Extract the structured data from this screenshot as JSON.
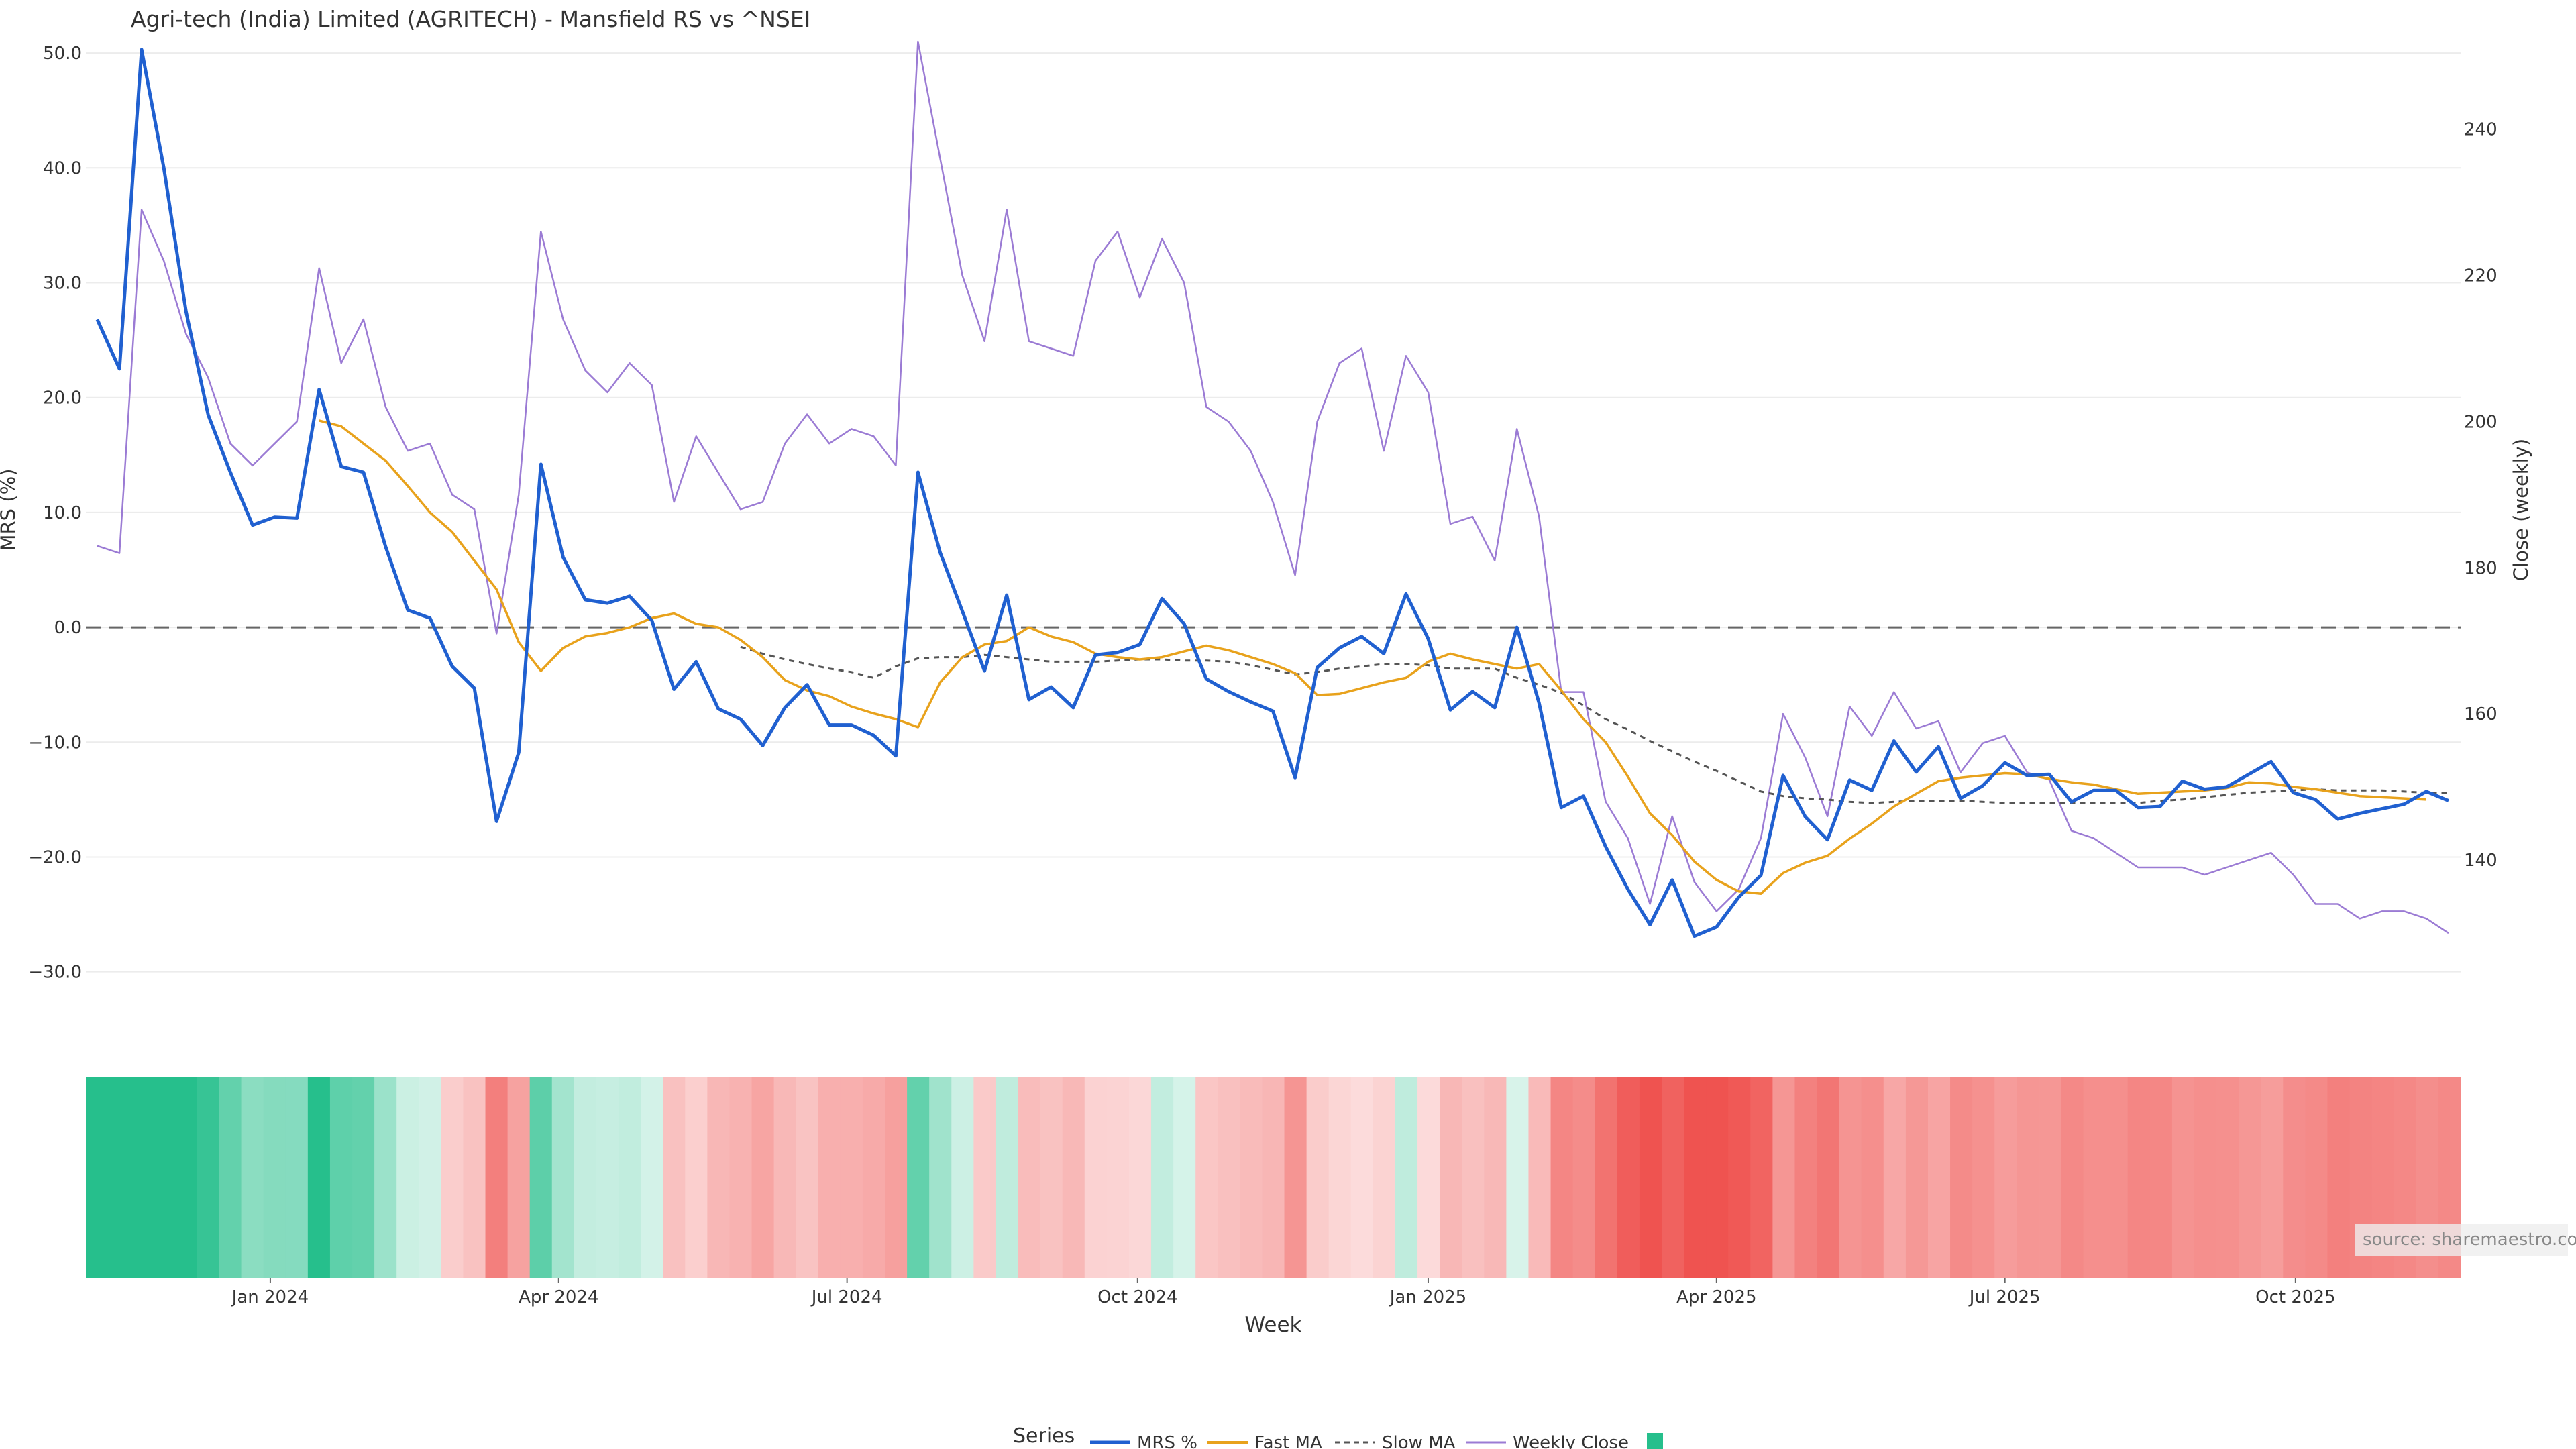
{
  "chart_data": {
    "type": "line",
    "title": "Agri-tech (India) Limited (AGRITECH) - Mansfield RS vs ^NSEI",
    "xlabel": "Week",
    "ylabel": "MRS (%)",
    "y2label": "Close (weekly)",
    "ylim": [
      -33,
      51
    ],
    "y2lim": [
      120,
      252
    ],
    "y_ticks": [
      "50.0",
      "40.0",
      "30.0",
      "20.0",
      "10.0",
      "0.0",
      "−10.0",
      "−20.0",
      "−30.0"
    ],
    "y_tick_values": [
      50,
      40,
      30,
      20,
      10,
      0,
      -10,
      -20,
      -30
    ],
    "y2_ticks": [
      "240",
      "220",
      "200",
      "180",
      "160",
      "140"
    ],
    "y2_tick_values": [
      240,
      220,
      200,
      180,
      160,
      140
    ],
    "x_ticks": [
      "Jan 2024",
      "Apr 2024",
      "Jul 2024",
      "Oct 2024",
      "Jan 2025",
      "Apr 2025",
      "Jul 2025",
      "Oct 2025"
    ],
    "x_tick_weeks": [
      7.8,
      20.8,
      33.8,
      46.9,
      60.0,
      73.0,
      86.0,
      99.1
    ],
    "zero_line": 0,
    "grid": true,
    "legend_title": "Series",
    "legend_position": "bottom-center",
    "source_note": "source: sharemaestro.com",
    "series": [
      {
        "name": "MRS %",
        "color": "#2060d0",
        "style": "solid-thick",
        "axis": "left",
        "values": [
          26.8,
          22.5,
          50.3,
          40.0,
          27.5,
          18.5,
          13.5,
          8.9,
          9.6,
          9.5,
          20.7,
          14.0,
          13.5,
          7.0,
          1.5,
          0.8,
          -3.4,
          -5.3,
          -16.9,
          -10.9,
          14.2,
          6.1,
          2.4,
          2.1,
          2.7,
          0.6,
          -5.4,
          -3.0,
          -7.1,
          -8.0,
          -10.3,
          -7.0,
          -5.0,
          -8.5,
          -8.5,
          -9.4,
          -11.2,
          13.5,
          6.5,
          1.4,
          -3.8,
          2.8,
          -6.3,
          -5.2,
          -7.0,
          -2.4,
          -2.2,
          -1.5,
          2.5,
          0.3,
          -4.5,
          -5.6,
          -6.5,
          -7.3,
          -13.1,
          -3.5,
          -1.8,
          -0.8,
          -2.3,
          2.9,
          -1.0,
          -7.2,
          -5.6,
          -7.0,
          0.0,
          -6.6,
          -15.7,
          -14.7,
          -19.1,
          -22.8,
          -25.9,
          -22.0,
          -26.9,
          -26.1,
          -23.5,
          -21.6,
          -12.9,
          -16.5,
          -18.5,
          -13.3,
          -14.2,
          -9.9,
          -12.6,
          -10.4,
          -14.9,
          -13.8,
          -11.8,
          -12.9,
          -12.8,
          -15.2,
          -14.2,
          -14.2,
          -15.7,
          -15.6,
          -13.4,
          -14.1,
          -13.9,
          -12.8,
          -11.7,
          -14.4,
          -15.0,
          -16.7,
          -16.2,
          -15.8,
          -15.4,
          -14.3,
          -15.1
        ]
      },
      {
        "name": "Fast MA",
        "color": "#e8a21c",
        "style": "solid",
        "axis": "left",
        "start_index": 10,
        "values": [
          18.0,
          17.5,
          16.0,
          14.5,
          12.3,
          10.0,
          8.3,
          5.8,
          3.3,
          -1.3,
          -3.8,
          -1.8,
          -0.8,
          -0.5,
          0.0,
          0.8,
          1.2,
          0.3,
          0.0,
          -1.1,
          -2.6,
          -4.6,
          -5.5,
          -6.0,
          -6.9,
          -7.5,
          -8.0,
          -8.7,
          -4.8,
          -2.6,
          -1.5,
          -1.2,
          0.0,
          -0.8,
          -1.3,
          -2.3,
          -2.6,
          -2.8,
          -2.6,
          -2.1,
          -1.6,
          -2.0,
          -2.6,
          -3.2,
          -4.0,
          -5.9,
          -5.8,
          -5.3,
          -4.8,
          -4.4,
          -3.0,
          -2.3,
          -2.8,
          -3.2,
          -3.6,
          -3.2,
          -5.5,
          -8.0,
          -10.0,
          -13.0,
          -16.2,
          -18.1,
          -20.4,
          -22.0,
          -23.0,
          -23.2,
          -21.4,
          -20.5,
          -19.9,
          -18.4,
          -17.1,
          -15.6,
          -14.5,
          -13.4,
          -13.1,
          -12.9,
          -12.7,
          -12.8,
          -13.2,
          -13.5,
          -13.7,
          -14.1,
          -14.5,
          -14.4,
          -14.3,
          -14.2,
          -14.0,
          -13.5,
          -13.6,
          -13.9,
          -14.1,
          -14.4,
          -14.7,
          -14.8,
          -14.9,
          -15.0
        ]
      },
      {
        "name": "Slow MA",
        "color": "#555555",
        "style": "dashed",
        "axis": "left",
        "start_index": 29,
        "values": [
          -1.7,
          -2.3,
          -2.8,
          -3.2,
          -3.6,
          -3.9,
          -4.4,
          -3.4,
          -2.7,
          -2.6,
          -2.6,
          -2.4,
          -2.6,
          -2.8,
          -3.0,
          -3.0,
          -3.0,
          -2.9,
          -2.8,
          -2.8,
          -2.9,
          -2.9,
          -3.0,
          -3.3,
          -3.7,
          -4.1,
          -3.9,
          -3.6,
          -3.4,
          -3.2,
          -3.2,
          -3.3,
          -3.6,
          -3.6,
          -3.6,
          -4.4,
          -5.0,
          -5.7,
          -6.8,
          -8.0,
          -8.9,
          -9.9,
          -10.8,
          -11.7,
          -12.5,
          -13.4,
          -14.3,
          -14.7,
          -14.9,
          -15.0,
          -15.2,
          -15.3,
          -15.2,
          -15.1,
          -15.1,
          -15.1,
          -15.2,
          -15.3,
          -15.3,
          -15.3,
          -15.3,
          -15.3,
          -15.3,
          -15.3,
          -15.1,
          -15.0,
          -14.8,
          -14.6,
          -14.4,
          -14.3,
          -14.2,
          -14.1,
          -14.2,
          -14.2,
          -14.2,
          -14.3,
          -14.4,
          -14.4
        ]
      },
      {
        "name": "Weekly Close",
        "color": "#9b7bd4",
        "style": "solid-thin",
        "axis": "right",
        "values": [
          183,
          182,
          229,
          222,
          212,
          206,
          197,
          194,
          197,
          200,
          221,
          208,
          214,
          202,
          196,
          197,
          190,
          188,
          171,
          190,
          226,
          214,
          207,
          204,
          208,
          205,
          189,
          198,
          193,
          188,
          189,
          197,
          201,
          197,
          199,
          198,
          194,
          252,
          236,
          220,
          211,
          229,
          211,
          210,
          209,
          222,
          226,
          217,
          225,
          219,
          202,
          200,
          196,
          189,
          179,
          200,
          208,
          210,
          196,
          209,
          204,
          186,
          187,
          181,
          199,
          187,
          163,
          163,
          148,
          143,
          134,
          146,
          137,
          133,
          136,
          143,
          160,
          154,
          146,
          161,
          157,
          163,
          158,
          159,
          152,
          156,
          157,
          152,
          151,
          144,
          143,
          141,
          139,
          139,
          139,
          138,
          139,
          140,
          141,
          138,
          134,
          134,
          132,
          133,
          133,
          132,
          130
        ]
      }
    ],
    "heatmap": {
      "description": "weekly MRS colour band",
      "values": [
        26.8,
        22.5,
        50.3,
        40.0,
        27.5,
        18.5,
        13.5,
        8.9,
        9.6,
        9.5,
        20.7,
        14.0,
        13.5,
        7.0,
        1.5,
        0.8,
        -3.4,
        -5.3,
        -16.9,
        -10.9,
        14.2,
        6.1,
        2.4,
        2.1,
        2.7,
        0.6,
        -5.4,
        -3.0,
        -7.1,
        -8.0,
        -10.3,
        -7.0,
        -5.0,
        -8.5,
        -8.5,
        -9.4,
        -11.2,
        13.5,
        6.5,
        1.4,
        -3.8,
        2.8,
        -6.3,
        -5.2,
        -7.0,
        -2.4,
        -2.2,
        -1.5,
        2.5,
        0.3,
        -4.5,
        -5.6,
        -6.5,
        -7.3,
        -13.1,
        -3.5,
        -1.8,
        -0.8,
        -2.3,
        2.9,
        -1.0,
        -7.2,
        -5.6,
        -7.0,
        0.0,
        -6.6,
        -15.7,
        -14.7,
        -19.1,
        -22.8,
        -25.9,
        -22.0,
        -26.9,
        -26.1,
        -23.5,
        -21.6,
        -12.9,
        -16.5,
        -18.5,
        -13.3,
        -14.2,
        -9.9,
        -12.6,
        -10.4,
        -14.9,
        -13.8,
        -11.8,
        -12.9,
        -12.8,
        -15.2,
        -14.2,
        -14.2,
        -15.7,
        -15.6,
        -13.4,
        -14.1,
        -13.9,
        -12.8,
        -11.7,
        -14.4,
        -15.0,
        -16.7,
        -16.2,
        -15.8,
        -15.4,
        -14.3,
        -15.1
      ],
      "positive_color": "#26bf8c",
      "negative_color": "#ef5350"
    }
  }
}
